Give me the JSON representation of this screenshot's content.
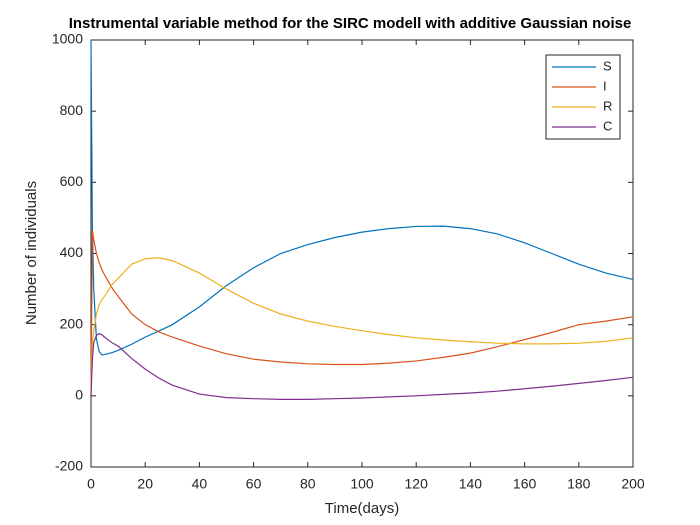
{
  "chart_data": {
    "type": "line",
    "title": "Instrumental variable method for the SIRC modell with additive Gaussian noise",
    "xlabel": "Time(days)",
    "ylabel": "Number of individuals",
    "x": [
      0,
      0.5,
      1,
      2,
      3,
      4,
      5,
      8,
      10,
      15,
      20,
      25,
      30,
      40,
      50,
      60,
      70,
      80,
      90,
      100,
      110,
      120,
      130,
      140,
      150,
      160,
      170,
      180,
      190,
      200
    ],
    "series": [
      {
        "name": "S",
        "color": "#0072bd",
        "values": [
          1000,
          480,
          300,
          160,
          125,
          115,
          116,
          122,
          128,
          145,
          165,
          182,
          200,
          250,
          310,
          360,
          400,
          425,
          445,
          460,
          470,
          476,
          477,
          470,
          455,
          430,
          400,
          370,
          345,
          327
        ]
      },
      {
        "name": "I",
        "color": "#d95319",
        "values": [
          0,
          465,
          440,
          400,
          375,
          355,
          340,
          300,
          280,
          230,
          200,
          180,
          165,
          140,
          118,
          103,
          95,
          90,
          88,
          88,
          92,
          98,
          108,
          120,
          138,
          158,
          178,
          200,
          210,
          222
        ]
      },
      {
        "name": "R",
        "color": "#edb120",
        "values": [
          0,
          150,
          180,
          230,
          255,
          270,
          280,
          315,
          330,
          370,
          385,
          388,
          380,
          345,
          300,
          260,
          230,
          210,
          195,
          183,
          172,
          163,
          157,
          152,
          148,
          146,
          146,
          148,
          153,
          163
        ]
      },
      {
        "name": "C",
        "color": "#7e2f8e",
        "values": [
          0,
          100,
          150,
          170,
          175,
          172,
          165,
          148,
          140,
          105,
          75,
          50,
          30,
          5,
          -5,
          -8,
          -10,
          -10,
          -8,
          -6,
          -3,
          0,
          4,
          8,
          13,
          20,
          27,
          35,
          43,
          52
        ]
      }
    ],
    "xlim": [
      0,
      200
    ],
    "xticks": [
      0,
      20,
      40,
      60,
      80,
      100,
      120,
      140,
      160,
      180,
      200
    ],
    "ylim": [
      -200,
      1000
    ],
    "yticks": [
      -200,
      0,
      200,
      400,
      600,
      800,
      1000
    ],
    "legend": "top-right",
    "grid": false
  }
}
